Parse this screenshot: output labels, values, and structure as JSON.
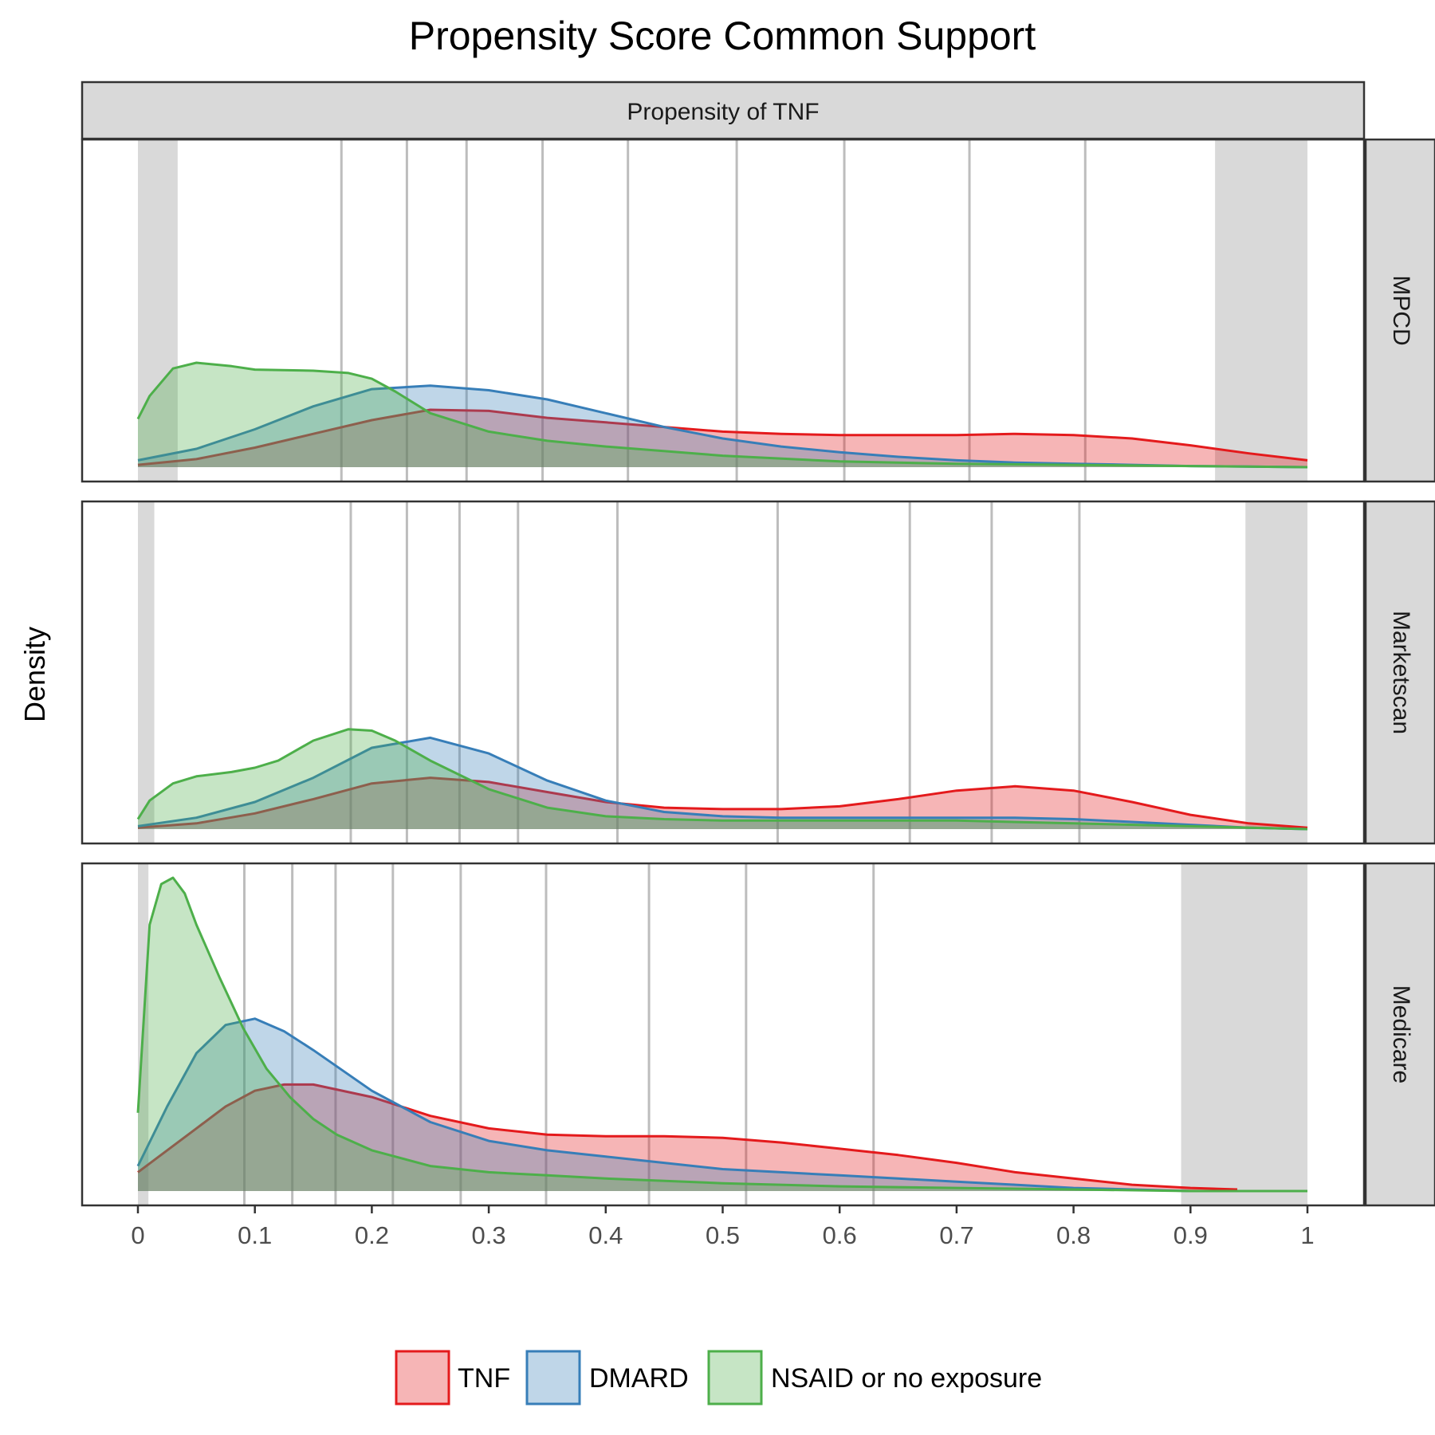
{
  "chart_data": {
    "type": "area",
    "title": "Propensity Score Common Support",
    "facet_column_label": "Propensity of TNF",
    "ylabel": "Density",
    "xlabel": "",
    "xlim": [
      0,
      1
    ],
    "x_ticks": [
      "0",
      "0.1",
      "0.2",
      "0.3",
      "0.4",
      "0.5",
      "0.6",
      "0.7",
      "0.8",
      "0.9",
      "1"
    ],
    "grid": false,
    "legend_position": "bottom",
    "colors": {
      "TNF": "#E41A1C",
      "DMARD": "#377EB8",
      "NSAID or no exposure": "#4DAF4A",
      "trim_band": "#d9d9d9",
      "decile_line": "#bdbdbd"
    },
    "legend": [
      "TNF",
      "DMARD",
      "NSAID or no exposure"
    ],
    "panels": [
      {
        "label": "MPCD",
        "trim_regions": [
          [
            0,
            0.034
          ],
          [
            0.921,
            1.0
          ]
        ],
        "decile_lines": [
          0.174,
          0.23,
          0.281,
          0.346,
          0.419,
          0.512,
          0.604,
          0.711,
          0.81
        ],
        "series": [
          {
            "name": "TNF",
            "x": [
              0,
              0.05,
              0.1,
              0.15,
              0.2,
              0.25,
              0.3,
              0.35,
              0.4,
              0.45,
              0.5,
              0.55,
              0.6,
              0.65,
              0.7,
              0.75,
              0.8,
              0.85,
              0.9,
              0.95,
              1.0
            ],
            "y": [
              0.02,
              0.07,
              0.17,
              0.29,
              0.41,
              0.5,
              0.49,
              0.43,
              0.39,
              0.35,
              0.31,
              0.29,
              0.28,
              0.28,
              0.28,
              0.29,
              0.28,
              0.25,
              0.19,
              0.12,
              0.06
            ]
          },
          {
            "name": "DMARD",
            "x": [
              0,
              0.05,
              0.1,
              0.15,
              0.2,
              0.25,
              0.3,
              0.35,
              0.4,
              0.45,
              0.5,
              0.55,
              0.6,
              0.65,
              0.7,
              0.75,
              0.8,
              0.85,
              0.9,
              0.95,
              1.0
            ],
            "y": [
              0.06,
              0.16,
              0.33,
              0.53,
              0.68,
              0.71,
              0.67,
              0.59,
              0.47,
              0.35,
              0.25,
              0.18,
              0.13,
              0.09,
              0.06,
              0.04,
              0.03,
              0.02,
              0.01,
              0.005,
              0.0
            ]
          },
          {
            "name": "NSAID or no exposure",
            "x": [
              0,
              0.01,
              0.03,
              0.05,
              0.08,
              0.1,
              0.15,
              0.18,
              0.2,
              0.22,
              0.25,
              0.3,
              0.35,
              0.4,
              0.5,
              0.6,
              0.7,
              0.8,
              0.9,
              1.0
            ],
            "y": [
              0.42,
              0.62,
              0.86,
              0.91,
              0.88,
              0.85,
              0.84,
              0.82,
              0.77,
              0.66,
              0.47,
              0.31,
              0.23,
              0.18,
              0.1,
              0.05,
              0.03,
              0.02,
              0.01,
              0.0
            ]
          }
        ]
      },
      {
        "label": "Marketscan",
        "trim_regions": [
          [
            0,
            0.014
          ],
          [
            0.947,
            1.0
          ]
        ],
        "decile_lines": [
          0.182,
          0.23,
          0.275,
          0.325,
          0.41,
          0.547,
          0.66,
          0.73,
          0.805
        ],
        "series": [
          {
            "name": "TNF",
            "x": [
              0,
              0.05,
              0.1,
              0.15,
              0.2,
              0.25,
              0.3,
              0.35,
              0.4,
              0.45,
              0.5,
              0.55,
              0.6,
              0.65,
              0.7,
              0.75,
              0.8,
              0.85,
              0.9,
              0.95,
              1.0
            ],
            "y": [
              0.01,
              0.04,
              0.11,
              0.21,
              0.32,
              0.36,
              0.33,
              0.26,
              0.19,
              0.15,
              0.14,
              0.14,
              0.16,
              0.21,
              0.27,
              0.3,
              0.27,
              0.19,
              0.1,
              0.04,
              0.01
            ]
          },
          {
            "name": "DMARD",
            "x": [
              0,
              0.05,
              0.1,
              0.15,
              0.2,
              0.25,
              0.3,
              0.35,
              0.4,
              0.45,
              0.5,
              0.55,
              0.6,
              0.65,
              0.7,
              0.75,
              0.8,
              0.85,
              0.9,
              0.95,
              1.0
            ],
            "y": [
              0.02,
              0.08,
              0.19,
              0.36,
              0.57,
              0.64,
              0.53,
              0.34,
              0.2,
              0.12,
              0.09,
              0.08,
              0.08,
              0.08,
              0.08,
              0.08,
              0.07,
              0.05,
              0.03,
              0.01,
              0.0
            ]
          },
          {
            "name": "NSAID or no exposure",
            "x": [
              0,
              0.01,
              0.03,
              0.05,
              0.08,
              0.1,
              0.12,
              0.15,
              0.18,
              0.2,
              0.22,
              0.25,
              0.3,
              0.35,
              0.4,
              0.45,
              0.5,
              0.6,
              0.7,
              0.8,
              0.9,
              1.0
            ],
            "y": [
              0.07,
              0.2,
              0.32,
              0.37,
              0.4,
              0.43,
              0.48,
              0.62,
              0.7,
              0.69,
              0.62,
              0.48,
              0.28,
              0.15,
              0.09,
              0.07,
              0.06,
              0.06,
              0.06,
              0.04,
              0.02,
              0.0
            ]
          }
        ]
      },
      {
        "label": "Medicare",
        "trim_regions": [
          [
            0,
            0.009
          ],
          [
            0.892,
            1.0
          ]
        ],
        "decile_lines": [
          0.091,
          0.132,
          0.169,
          0.218,
          0.276,
          0.349,
          0.437,
          0.52,
          0.629
        ],
        "series": [
          {
            "name": "TNF",
            "x": [
              0,
              0.025,
              0.05,
              0.075,
              0.1,
              0.125,
              0.15,
              0.2,
              0.25,
              0.3,
              0.35,
              0.4,
              0.45,
              0.5,
              0.55,
              0.6,
              0.65,
              0.7,
              0.75,
              0.8,
              0.85,
              0.9,
              0.94
            ],
            "y": [
              0.06,
              0.13,
              0.2,
              0.27,
              0.32,
              0.34,
              0.34,
              0.3,
              0.24,
              0.2,
              0.18,
              0.175,
              0.175,
              0.17,
              0.155,
              0.135,
              0.115,
              0.09,
              0.06,
              0.04,
              0.02,
              0.01,
              0.005
            ]
          },
          {
            "name": "DMARD",
            "x": [
              0,
              0.025,
              0.05,
              0.075,
              0.1,
              0.125,
              0.15,
              0.2,
              0.25,
              0.3,
              0.35,
              0.4,
              0.45,
              0.5,
              0.55,
              0.6,
              0.65,
              0.7,
              0.75,
              0.8,
              0.85,
              0.9,
              1.0
            ],
            "y": [
              0.08,
              0.27,
              0.44,
              0.53,
              0.55,
              0.51,
              0.45,
              0.32,
              0.22,
              0.16,
              0.13,
              0.11,
              0.09,
              0.07,
              0.06,
              0.05,
              0.04,
              0.03,
              0.02,
              0.01,
              0.005,
              0.0,
              0.0
            ]
          },
          {
            "name": "NSAID or no exposure",
            "x": [
              0,
              0.01,
              0.02,
              0.03,
              0.04,
              0.05,
              0.07,
              0.09,
              0.11,
              0.13,
              0.15,
              0.17,
              0.2,
              0.25,
              0.3,
              0.35,
              0.4,
              0.5,
              0.6,
              0.7,
              0.8,
              0.9,
              1.0
            ],
            "y": [
              0.25,
              0.85,
              0.98,
              1.0,
              0.95,
              0.85,
              0.68,
              0.52,
              0.39,
              0.3,
              0.23,
              0.18,
              0.13,
              0.08,
              0.06,
              0.05,
              0.04,
              0.025,
              0.015,
              0.01,
              0.005,
              0.0,
              0.0
            ]
          }
        ]
      }
    ]
  }
}
